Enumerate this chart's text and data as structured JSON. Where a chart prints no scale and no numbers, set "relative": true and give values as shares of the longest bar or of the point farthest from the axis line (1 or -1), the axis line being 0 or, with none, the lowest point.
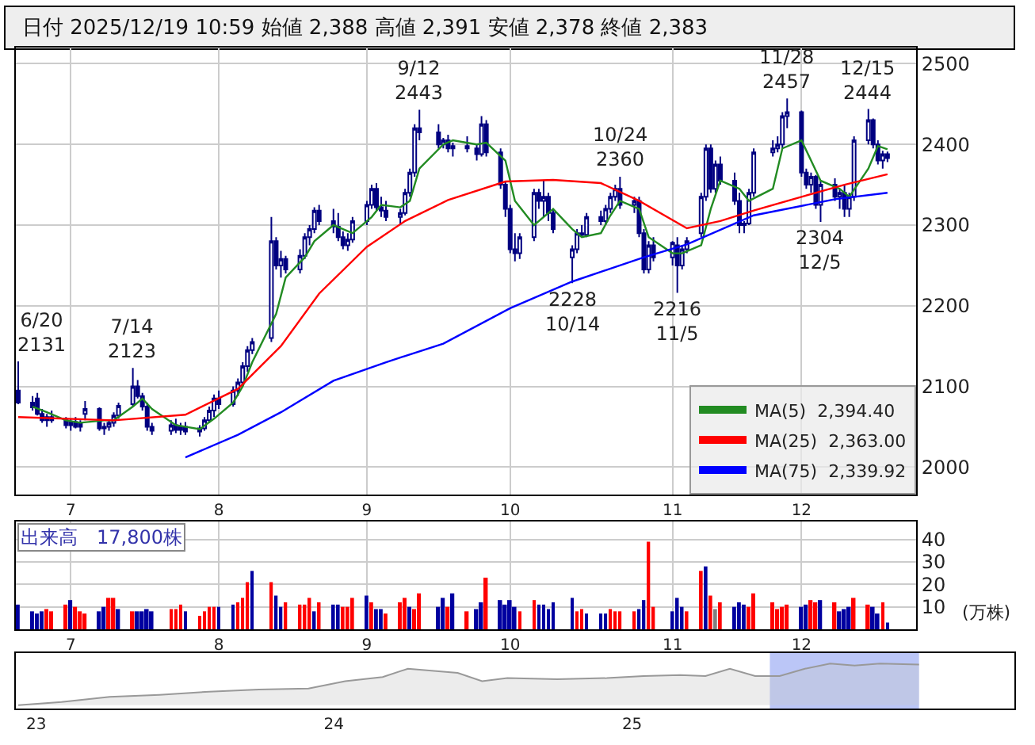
{
  "chart_data": [
    {
      "type": "candlestick",
      "title": "日付 2025/12/19 10:59 始値 2,388 高値 2,391 安値 2,378 終値 2,383",
      "color": "#000080",
      "x": [
        "2025-06-20",
        "2025-06-23",
        "2025-06-24",
        "2025-06-25",
        "2025-06-26",
        "2025-06-27",
        "2025-06-30",
        "2025-07-01",
        "2025-07-02",
        "2025-07-03",
        "2025-07-04",
        "2025-07-07",
        "2025-07-08",
        "2025-07-09",
        "2025-07-10",
        "2025-07-11",
        "2025-07-14",
        "2025-07-15",
        "2025-07-16",
        "2025-07-17",
        "2025-07-18",
        "2025-07-22",
        "2025-07-23",
        "2025-07-24",
        "2025-07-25",
        "2025-07-28",
        "2025-07-29",
        "2025-07-30",
        "2025-07-31",
        "2025-08-01",
        "2025-08-04",
        "2025-08-05",
        "2025-08-06",
        "2025-08-07",
        "2025-08-08",
        "2025-08-12",
        "2025-08-13",
        "2025-08-14",
        "2025-08-15",
        "2025-08-18",
        "2025-08-19",
        "2025-08-20",
        "2025-08-21",
        "2025-08-22",
        "2025-08-25",
        "2025-08-26",
        "2025-08-27",
        "2025-08-28",
        "2025-08-29",
        "2025-09-01",
        "2025-09-02",
        "2025-09-03",
        "2025-09-04",
        "2025-09-05",
        "2025-09-08",
        "2025-09-09",
        "2025-09-10",
        "2025-09-11",
        "2025-09-12",
        "2025-09-16",
        "2025-09-17",
        "2025-09-18",
        "2025-09-19",
        "2025-09-22",
        "2025-09-24",
        "2025-09-25",
        "2025-09-26",
        "2025-09-29",
        "2025-09-30",
        "2025-10-01",
        "2025-10-02",
        "2025-10-03",
        "2025-10-06",
        "2025-10-07",
        "2025-10-08",
        "2025-10-09",
        "2025-10-10",
        "2025-10-14",
        "2025-10-15",
        "2025-10-16",
        "2025-10-17",
        "2025-10-20",
        "2025-10-21",
        "2025-10-22",
        "2025-10-23",
        "2025-10-24",
        "2025-10-27",
        "2025-10-28",
        "2025-10-29",
        "2025-10-30",
        "2025-10-31",
        "2025-11-04",
        "2025-11-05",
        "2025-11-06",
        "2025-11-07",
        "2025-11-10",
        "2025-11-11",
        "2025-11-12",
        "2025-11-13",
        "2025-11-14",
        "2025-11-17",
        "2025-11-18",
        "2025-11-19",
        "2025-11-20",
        "2025-11-21",
        "2025-11-25",
        "2025-11-26",
        "2025-11-27",
        "2025-11-28",
        "2025-12-01",
        "2025-12-02",
        "2025-12-03",
        "2025-12-04",
        "2025-12-05",
        "2025-12-08",
        "2025-12-09",
        "2025-12-10",
        "2025-12-11",
        "2025-12-12",
        "2025-12-15",
        "2025-12-16",
        "2025-12-17",
        "2025-12-18",
        "2025-12-19"
      ],
      "ohlc": [
        [
          2095,
          2131,
          2078,
          2080
        ],
        [
          2080,
          2088,
          2070,
          2074
        ],
        [
          2085,
          2092,
          2064,
          2066
        ],
        [
          2066,
          2072,
          2055,
          2058
        ],
        [
          2058,
          2066,
          2050,
          2062
        ],
        [
          2062,
          2070,
          2055,
          2058
        ],
        [
          2058,
          2062,
          2048,
          2052
        ],
        [
          2052,
          2060,
          2045,
          2056
        ],
        [
          2056,
          2062,
          2048,
          2050
        ],
        [
          2050,
          2058,
          2044,
          2054
        ],
        [
          2066,
          2082,
          2058,
          2072
        ],
        [
          2072,
          2074,
          2045,
          2048
        ],
        [
          2048,
          2055,
          2040,
          2050
        ],
        [
          2050,
          2058,
          2045,
          2055
        ],
        [
          2055,
          2068,
          2050,
          2064
        ],
        [
          2064,
          2080,
          2060,
          2076
        ],
        [
          2078,
          2123,
          2075,
          2100
        ],
        [
          2100,
          2108,
          2085,
          2088
        ],
        [
          2088,
          2092,
          2070,
          2075
        ],
        [
          2075,
          2080,
          2045,
          2050
        ],
        [
          2050,
          2055,
          2040,
          2045
        ],
        [
          2045,
          2058,
          2040,
          2052
        ],
        [
          2052,
          2060,
          2042,
          2046
        ],
        [
          2046,
          2055,
          2040,
          2050
        ],
        [
          2050,
          2056,
          2040,
          2044
        ],
        [
          2044,
          2052,
          2038,
          2048
        ],
        [
          2048,
          2062,
          2045,
          2058
        ],
        [
          2058,
          2075,
          2055,
          2070
        ],
        [
          2070,
          2090,
          2062,
          2085
        ],
        [
          2085,
          2095,
          2072,
          2078
        ],
        [
          2078,
          2100,
          2075,
          2095
        ],
        [
          2095,
          2110,
          2088,
          2105
        ],
        [
          2105,
          2130,
          2100,
          2125
        ],
        [
          2125,
          2150,
          2118,
          2145
        ],
        [
          2145,
          2160,
          2140,
          2155
        ],
        [
          2160,
          2310,
          2155,
          2280
        ],
        [
          2280,
          2285,
          2245,
          2250
        ],
        [
          2250,
          2268,
          2235,
          2258
        ],
        [
          2258,
          2262,
          2240,
          2245
        ],
        [
          2245,
          2270,
          2240,
          2262
        ],
        [
          2262,
          2290,
          2258,
          2285
        ],
        [
          2285,
          2300,
          2275,
          2295
        ],
        [
          2295,
          2322,
          2290,
          2318
        ],
        [
          2318,
          2325,
          2300,
          2305
        ],
        [
          2305,
          2320,
          2290,
          2298
        ],
        [
          2298,
          2315,
          2280,
          2285
        ],
        [
          2285,
          2292,
          2270,
          2275
        ],
        [
          2275,
          2290,
          2268,
          2282
        ],
        [
          2282,
          2310,
          2278,
          2305
        ],
        [
          2305,
          2330,
          2300,
          2325
        ],
        [
          2325,
          2350,
          2320,
          2345
        ],
        [
          2345,
          2352,
          2318,
          2322
        ],
        [
          2322,
          2335,
          2310,
          2318
        ],
        [
          2318,
          2330,
          2305,
          2310
        ],
        [
          2310,
          2320,
          2300,
          2315
        ],
        [
          2315,
          2345,
          2312,
          2340
        ],
        [
          2340,
          2370,
          2335,
          2365
        ],
        [
          2365,
          2425,
          2360,
          2420
        ],
        [
          2420,
          2443,
          2405,
          2415
        ],
        [
          2415,
          2425,
          2395,
          2400
        ],
        [
          2400,
          2408,
          2395,
          2405
        ],
        [
          2405,
          2412,
          2390,
          2395
        ],
        [
          2395,
          2402,
          2385,
          2398
        ],
        [
          2398,
          2410,
          2390,
          2395
        ],
        [
          2395,
          2400,
          2380,
          2388
        ],
        [
          2388,
          2435,
          2385,
          2425
        ],
        [
          2425,
          2430,
          2385,
          2390
        ],
        [
          2390,
          2395,
          2345,
          2350
        ],
        [
          2350,
          2355,
          2310,
          2320
        ],
        [
          2320,
          2325,
          2265,
          2270
        ],
        [
          2270,
          2290,
          2255,
          2265
        ],
        [
          2265,
          2290,
          2258,
          2285
        ],
        [
          2285,
          2345,
          2280,
          2340
        ],
        [
          2340,
          2345,
          2320,
          2330
        ],
        [
          2330,
          2355,
          2310,
          2335
        ],
        [
          2335,
          2340,
          2305,
          2315
        ],
        [
          2315,
          2320,
          2290,
          2295
        ],
        [
          2260,
          2275,
          2228,
          2270
        ],
        [
          2270,
          2295,
          2265,
          2290
        ],
        [
          2290,
          2300,
          2285,
          2288
        ],
        [
          2288,
          2315,
          2285,
          2310
        ],
        [
          2310,
          2318,
          2300,
          2305
        ],
        [
          2305,
          2325,
          2300,
          2320
        ],
        [
          2320,
          2340,
          2315,
          2335
        ],
        [
          2335,
          2350,
          2330,
          2345
        ],
        [
          2345,
          2360,
          2320,
          2325
        ],
        [
          2325,
          2335,
          2315,
          2330
        ],
        [
          2330,
          2335,
          2285,
          2290
        ],
        [
          2290,
          2295,
          2240,
          2245
        ],
        [
          2245,
          2280,
          2240,
          2275
        ],
        [
          2275,
          2285,
          2255,
          2260
        ],
        [
          2260,
          2280,
          2250,
          2278
        ],
        [
          2275,
          2285,
          2216,
          2250
        ],
        [
          2250,
          2275,
          2245,
          2270
        ],
        [
          2270,
          2285,
          2265,
          2280
        ],
        [
          2290,
          2340,
          2285,
          2335
        ],
        [
          2335,
          2400,
          2330,
          2395
        ],
        [
          2395,
          2400,
          2340,
          2345
        ],
        [
          2345,
          2380,
          2340,
          2375
        ],
        [
          2375,
          2385,
          2350,
          2355
        ],
        [
          2355,
          2365,
          2325,
          2330
        ],
        [
          2330,
          2340,
          2290,
          2300
        ],
        [
          2300,
          2305,
          2290,
          2302
        ],
        [
          2302,
          2345,
          2300,
          2340
        ],
        [
          2340,
          2395,
          2335,
          2390
        ],
        [
          2390,
          2405,
          2385,
          2395
        ],
        [
          2395,
          2410,
          2390,
          2400
        ],
        [
          2400,
          2440,
          2395,
          2435
        ],
        [
          2435,
          2457,
          2420,
          2440
        ],
        [
          2440,
          2442,
          2360,
          2365
        ],
        [
          2365,
          2370,
          2345,
          2350
        ],
        [
          2350,
          2365,
          2340,
          2360
        ],
        [
          2360,
          2362,
          2320,
          2325
        ],
        [
          2325,
          2355,
          2304,
          2350
        ],
        [
          2350,
          2358,
          2330,
          2335
        ],
        [
          2335,
          2345,
          2320,
          2340
        ],
        [
          2340,
          2350,
          2310,
          2320
        ],
        [
          2320,
          2340,
          2310,
          2335
        ],
        [
          2335,
          2410,
          2330,
          2405
        ],
        [
          2405,
          2444,
          2400,
          2430
        ],
        [
          2430,
          2432,
          2395,
          2400
        ],
        [
          2400,
          2405,
          2375,
          2380
        ],
        [
          2380,
          2392,
          2370,
          2388
        ],
        [
          2388,
          2391,
          2378,
          2383
        ]
      ],
      "series": [
        {
          "type": "line",
          "name": "MA(5)  2,394.40",
          "color": "#228b22",
          "x": [
            "2025-06-23",
            "2025-06-26",
            "2025-06-30",
            "2025-07-03",
            "2025-07-08",
            "2025-07-10",
            "2025-07-14",
            "2025-07-16",
            "2025-07-18",
            "2025-07-23",
            "2025-07-28",
            "2025-07-31",
            "2025-08-04",
            "2025-08-06",
            "2025-08-08",
            "2025-08-13",
            "2025-08-15",
            "2025-08-19",
            "2025-08-21",
            "2025-08-25",
            "2025-08-27",
            "2025-08-29",
            "2025-09-02",
            "2025-09-04",
            "2025-09-08",
            "2025-09-10",
            "2025-09-12",
            "2025-09-17",
            "2025-09-19",
            "2025-09-24",
            "2025-09-26",
            "2025-09-30",
            "2025-10-02",
            "2025-10-06",
            "2025-10-08",
            "2025-10-10",
            "2025-10-14",
            "2025-10-16",
            "2025-10-20",
            "2025-10-22",
            "2025-10-24",
            "2025-10-28",
            "2025-10-30",
            "2025-11-04",
            "2025-11-06",
            "2025-11-10",
            "2025-11-12",
            "2025-11-14",
            "2025-11-18",
            "2025-11-20",
            "2025-11-25",
            "2025-11-27",
            "2025-12-01",
            "2025-12-03",
            "2025-12-05",
            "2025-12-09",
            "2025-12-11",
            "2025-12-15",
            "2025-12-17",
            "2025-12-19"
          ],
          "values": [
            2075,
            2068,
            2058,
            2055,
            2058,
            2058,
            2075,
            2085,
            2072,
            2052,
            2047,
            2060,
            2080,
            2100,
            2130,
            2190,
            2235,
            2260,
            2280,
            2300,
            2295,
            2290,
            2310,
            2325,
            2322,
            2330,
            2370,
            2400,
            2405,
            2400,
            2402,
            2380,
            2330,
            2300,
            2310,
            2320,
            2295,
            2285,
            2290,
            2312,
            2330,
            2320,
            2285,
            2265,
            2265,
            2275,
            2320,
            2355,
            2345,
            2330,
            2345,
            2395,
            2405,
            2380,
            2355,
            2345,
            2335,
            2370,
            2398,
            2394
          ]
        },
        {
          "type": "line",
          "name": "MA(25)  2,363.00",
          "color": "#ff0000",
          "x": [
            "2025-06-20",
            "2025-07-10",
            "2025-07-25",
            "2025-08-05",
            "2025-08-14",
            "2025-08-22",
            "2025-09-01",
            "2025-09-09",
            "2025-09-18",
            "2025-09-30",
            "2025-10-10",
            "2025-10-20",
            "2025-10-28",
            "2025-11-07",
            "2025-11-14",
            "2025-11-21",
            "2025-12-01",
            "2025-12-10",
            "2025-12-19"
          ],
          "values": [
            2062,
            2058,
            2065,
            2097,
            2150,
            2215,
            2273,
            2305,
            2331,
            2354,
            2356,
            2352,
            2330,
            2296,
            2305,
            2318,
            2335,
            2350,
            2363
          ]
        },
        {
          "type": "line",
          "name": "MA(75)  2,339.92",
          "color": "#0000ff",
          "x": [
            "2025-07-25",
            "2025-08-05",
            "2025-08-14",
            "2025-08-25",
            "2025-09-05",
            "2025-09-17",
            "2025-10-01",
            "2025-10-14",
            "2025-10-29",
            "2025-11-07",
            "2025-11-21",
            "2025-12-08",
            "2025-12-19"
          ],
          "values": [
            2012,
            2040,
            2068,
            2107,
            2130,
            2153,
            2197,
            2230,
            2260,
            2276,
            2312,
            2332,
            2340
          ]
        }
      ],
      "annotations": [
        {
          "text": "6/20\n2131",
          "x": "2025-06-20",
          "y": 2131
        },
        {
          "text": "7/14\n2123",
          "x": "2025-07-14",
          "y": 2123
        },
        {
          "text": "9/12\n2443",
          "x": "2025-09-12",
          "y": 2443
        },
        {
          "text": "2228\n10/14",
          "x": "2025-10-14",
          "y": 2228
        },
        {
          "text": "10/24\n2360",
          "x": "2025-10-24",
          "y": 2360
        },
        {
          "text": "2216\n11/5",
          "x": "2025-11-05",
          "y": 2216
        },
        {
          "text": "11/28\n2457",
          "x": "2025-11-28",
          "y": 2457
        },
        {
          "text": "2304\n12/5",
          "x": "2025-12-05",
          "y": 2304
        },
        {
          "text": "12/15\n2444",
          "x": "2025-12-15",
          "y": 2444
        }
      ],
      "xlim": [
        "2025-06-19T12:00",
        "2025-12-25"
      ],
      "xticks": [
        {
          "value": "2025-07-01",
          "label": "7"
        },
        {
          "value": "2025-08-01",
          "label": "8"
        },
        {
          "value": "2025-09-01",
          "label": "9"
        },
        {
          "value": "2025-10-01",
          "label": "10"
        },
        {
          "value": "2025-11-04",
          "label": "11"
        },
        {
          "value": "2025-12-01",
          "label": "12"
        }
      ],
      "ylim": [
        1966,
        2520
      ],
      "yticks": [
        2000,
        2100,
        2200,
        2300,
        2400,
        2500
      ],
      "grid": true,
      "legend": "bottom right"
    },
    {
      "type": "bar",
      "title": "出来高　17,800株",
      "ylabel": "(万株)",
      "x": [
        "2025-06-20",
        "2025-06-23",
        "2025-06-24",
        "2025-06-25",
        "2025-06-26",
        "2025-06-27",
        "2025-06-30",
        "2025-07-01",
        "2025-07-02",
        "2025-07-03",
        "2025-07-04",
        "2025-07-07",
        "2025-07-08",
        "2025-07-09",
        "2025-07-10",
        "2025-07-11",
        "2025-07-14",
        "2025-07-15",
        "2025-07-16",
        "2025-07-17",
        "2025-07-18",
        "2025-07-22",
        "2025-07-23",
        "2025-07-24",
        "2025-07-25",
        "2025-07-28",
        "2025-07-29",
        "2025-07-30",
        "2025-07-31",
        "2025-08-01",
        "2025-08-04",
        "2025-08-05",
        "2025-08-06",
        "2025-08-07",
        "2025-08-08",
        "2025-08-12",
        "2025-08-13",
        "2025-08-14",
        "2025-08-15",
        "2025-08-18",
        "2025-08-19",
        "2025-08-20",
        "2025-08-21",
        "2025-08-22",
        "2025-08-25",
        "2025-08-26",
        "2025-08-27",
        "2025-08-28",
        "2025-08-29",
        "2025-09-01",
        "2025-09-02",
        "2025-09-03",
        "2025-09-04",
        "2025-09-05",
        "2025-09-08",
        "2025-09-09",
        "2025-09-10",
        "2025-09-11",
        "2025-09-12",
        "2025-09-16",
        "2025-09-17",
        "2025-09-18",
        "2025-09-19",
        "2025-09-22",
        "2025-09-24",
        "2025-09-25",
        "2025-09-26",
        "2025-09-29",
        "2025-09-30",
        "2025-10-01",
        "2025-10-02",
        "2025-10-03",
        "2025-10-06",
        "2025-10-07",
        "2025-10-08",
        "2025-10-09",
        "2025-10-10",
        "2025-10-14",
        "2025-10-15",
        "2025-10-16",
        "2025-10-17",
        "2025-10-20",
        "2025-10-21",
        "2025-10-22",
        "2025-10-23",
        "2025-10-24",
        "2025-10-27",
        "2025-10-28",
        "2025-10-29",
        "2025-10-30",
        "2025-10-31",
        "2025-11-04",
        "2025-11-05",
        "2025-11-06",
        "2025-11-07",
        "2025-11-10",
        "2025-11-11",
        "2025-11-12",
        "2025-11-13",
        "2025-11-14",
        "2025-11-17",
        "2025-11-18",
        "2025-11-19",
        "2025-11-20",
        "2025-11-21",
        "2025-11-25",
        "2025-11-26",
        "2025-11-27",
        "2025-11-28",
        "2025-12-01",
        "2025-12-02",
        "2025-12-03",
        "2025-12-04",
        "2025-12-05",
        "2025-12-08",
        "2025-12-09",
        "2025-12-10",
        "2025-12-11",
        "2025-12-12",
        "2025-12-15",
        "2025-12-16",
        "2025-12-17",
        "2025-12-18",
        "2025-12-19"
      ],
      "values": [
        11,
        8,
        7,
        8,
        9,
        8,
        11,
        13,
        10,
        8,
        7,
        8,
        10,
        14,
        14,
        9,
        8,
        8,
        8,
        9,
        8,
        9,
        9,
        11,
        8,
        6,
        8,
        10,
        10,
        10,
        11,
        12,
        14,
        21,
        26,
        21,
        15,
        10,
        12,
        11,
        11,
        14,
        8,
        12,
        11,
        11,
        10,
        10,
        14,
        15,
        12,
        9,
        9,
        7,
        12,
        14,
        10,
        9,
        16,
        10,
        14,
        10,
        16,
        8,
        9,
        12,
        23,
        13,
        11,
        13,
        10,
        8,
        13,
        11,
        11,
        9,
        12,
        14,
        8,
        9,
        7,
        7,
        7,
        9,
        8,
        8,
        8,
        9,
        13,
        39,
        10,
        8,
        14,
        10,
        8,
        26,
        28,
        15,
        9,
        12,
        10,
        12,
        11,
        10,
        16,
        12,
        9,
        10,
        11,
        10,
        11,
        13,
        12,
        13,
        12,
        8,
        9,
        10,
        14,
        11,
        10,
        7,
        12,
        3
      ],
      "colors": [
        "#0000a0",
        "#0000a0",
        "#0000a0",
        "#0000a0",
        "#ff0000",
        "#ff0000",
        "#ff0000",
        "#0000a0",
        "#ff0000",
        "#ff0000",
        "#ff0000",
        "#0000a0",
        "#0000a0",
        "#ff0000",
        "#ff0000",
        "#0000a0",
        "#ff0000",
        "#0000a0",
        "#0000a0",
        "#0000a0",
        "#0000a0",
        "#ff0000",
        "#ff0000",
        "#ff0000",
        "#0000a0",
        "#ff0000",
        "#ff0000",
        "#ff0000",
        "#ff0000",
        "#0000a0",
        "#0000a0",
        "#ff0000",
        "#ff0000",
        "#ff0000",
        "#0000a0",
        "#ff0000",
        "#0000a0",
        "#0000a0",
        "#ff0000",
        "#ff0000",
        "#ff0000",
        "#ff0000",
        "#0000a0",
        "#ff0000",
        "#0000a0",
        "#0000a0",
        "#ff0000",
        "#ff0000",
        "#ff0000",
        "#0000a0",
        "#ff0000",
        "#0000a0",
        "#0000a0",
        "#ff0000",
        "#ff0000",
        "#ff0000",
        "#0000a0",
        "#ff0000",
        "#ff0000",
        "#0000a0",
        "#0000a0",
        "#ff0000",
        "#0000a0",
        "#ff0000",
        "#0000a0",
        "#0000a0",
        "#ff0000",
        "#0000a0",
        "#0000a0",
        "#0000a0",
        "#0000a0",
        "#ff0000",
        "#ff0000",
        "#0000a0",
        "#0000a0",
        "#0000a0",
        "#0000a0",
        "#0000a0",
        "#ff0000",
        "#ff0000",
        "#0000a0",
        "#0000a0",
        "#0000a0",
        "#ff0000",
        "#ff0000",
        "#ff0000",
        "#ff0000",
        "#0000a0",
        "#0000a0",
        "#ff0000",
        "#ff0000",
        "#0000a0",
        "#0000a0",
        "#0000a0",
        "#ff0000",
        "#ff0000",
        "#0000a0",
        "#ff0000",
        "#808080",
        "#ff0000",
        "#0000a0",
        "#0000a0",
        "#0000a0",
        "#ff0000",
        "#ff0000",
        "#ff0000",
        "#ff0000",
        "#ff0000",
        "#ff0000",
        "#0000a0",
        "#0000a0",
        "#ff0000",
        "#ff0000",
        "#0000a0",
        "#ff0000",
        "#0000a0",
        "#0000a0",
        "#0000a0",
        "#ff0000",
        "#ff0000",
        "#0000a0",
        "#0000a0",
        "#ff0000",
        "#0000a0"
      ],
      "xlim": [
        "2025-06-19T12:00",
        "2025-12-25"
      ],
      "xticks": [
        {
          "value": "2025-07-01",
          "label": "7"
        },
        {
          "value": "2025-08-01",
          "label": "8"
        },
        {
          "value": "2025-09-01",
          "label": "9"
        },
        {
          "value": "2025-10-01",
          "label": "10"
        },
        {
          "value": "2025-11-04",
          "label": "11"
        },
        {
          "value": "2025-12-01",
          "label": "12"
        }
      ],
      "ylim": [
        0,
        48
      ],
      "yticks": [
        10,
        20,
        30,
        40
      ],
      "grid": true
    },
    {
      "type": "area",
      "relative": true,
      "color": "#999999",
      "x": [
        "2022-12-10",
        "2023-02-01",
        "2023-04-01",
        "2023-06-01",
        "2023-08-01",
        "2023-10-01",
        "2023-12-01",
        "2024-01-15",
        "2024-03-01",
        "2024-04-01",
        "2024-06-01",
        "2024-07-01",
        "2024-08-01",
        "2024-10-01",
        "2024-12-01",
        "2025-01-15",
        "2025-03-01",
        "2025-04-01",
        "2025-05-01",
        "2025-06-01",
        "2025-07-01",
        "2025-08-01",
        "2025-09-01",
        "2025-10-01",
        "2025-11-01",
        "2025-12-19"
      ],
      "values": [
        0,
        0.075,
        0.2,
        0.25,
        0.325,
        0.375,
        0.4,
        0.575,
        0.675,
        0.875,
        0.775,
        0.575,
        0.65,
        0.625,
        0.65,
        0.7,
        0.725,
        0.7,
        0.875,
        0.7,
        0.7,
        0.875,
        1,
        0.95,
        1,
        0.975
      ],
      "bands": [
        {
          "axis": "x",
          "from": "2025-06-19",
          "to": "2025-12-19",
          "color": "#aab8f5"
        }
      ],
      "xlim": [
        "2022-12-07",
        "2026-04-15"
      ],
      "xticks": [
        {
          "value": "2023-01-01",
          "label": "23"
        },
        {
          "value": "2024-01-01",
          "label": "24"
        },
        {
          "value": "2025-01-01",
          "label": "25"
        }
      ]
    }
  ]
}
